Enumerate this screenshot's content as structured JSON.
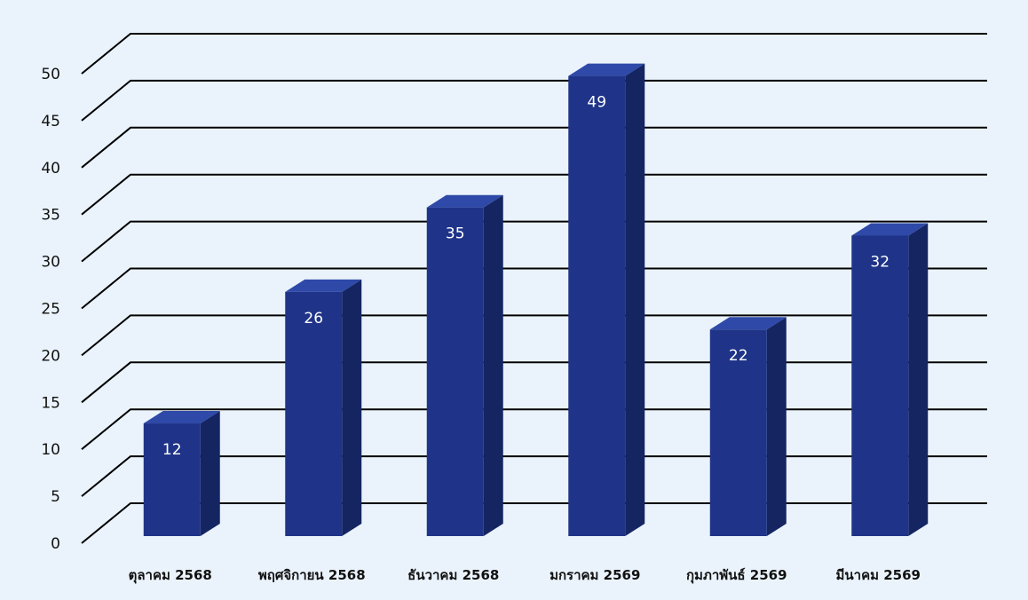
{
  "chart_data": {
    "type": "bar",
    "categories": [
      "ตุลาคม 2568",
      "พฤศจิกายน 2568",
      "ธันวาคม 2568",
      "มกราคม 2569",
      "กุมภาพันธ์ 2569",
      "มีนาคม 2569"
    ],
    "values": [
      12,
      26,
      35,
      49,
      22,
      32
    ],
    "data_labels": [
      "12",
      "26",
      "35",
      "49",
      "22",
      "32"
    ],
    "y_ticks": [
      "0",
      "5",
      "10",
      "15",
      "20",
      "25",
      "30",
      "35",
      "40",
      "45",
      "50"
    ],
    "ylim": [
      0,
      50
    ],
    "grid": true,
    "legend": "none",
    "style": "3d-column",
    "colors": {
      "bar_front": "#1f3488",
      "bar_top": "#2e49a8",
      "bar_side": "#142562",
      "grid": "#000000",
      "background": "#eaf3fb"
    }
  }
}
